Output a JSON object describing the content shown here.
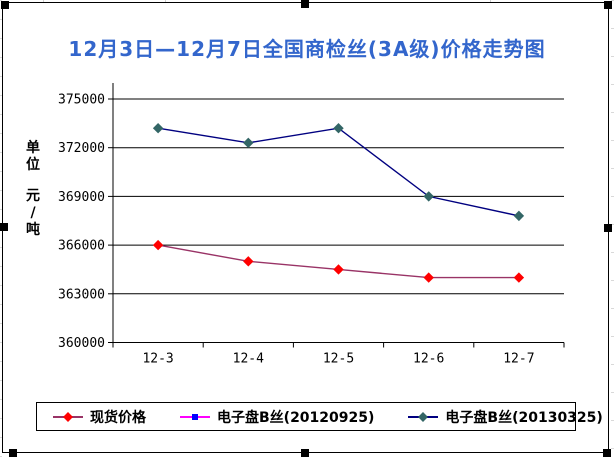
{
  "chart": {
    "title_color": "#3366CC",
    "border_color": "#000000",
    "background_color": "#FFFFFF",
    "selection_handles": true
  },
  "chart_data": {
    "type": "line",
    "title": "12月3日—12月7日全国商检丝(3A级)价格走势图",
    "categories": [
      "12-3",
      "12-4",
      "12-5",
      "12-6",
      "12-7"
    ],
    "series": [
      {
        "name": "现货价格",
        "values": [
          366000,
          365000,
          364500,
          364000,
          364000
        ],
        "line_color": "#993366",
        "marker_color": "#FF0000",
        "marker": "diamond"
      },
      {
        "name": "电子盘B丝(20120925)",
        "values": [],
        "line_color": "#FF00FF",
        "marker_color": "#0000FF",
        "marker": "square"
      },
      {
        "name": "电子盘B丝(20130325)",
        "values": [
          373200,
          372300,
          373200,
          369000,
          367800
        ],
        "line_color": "#000080",
        "marker_color": "#336666",
        "marker": "diamond"
      }
    ],
    "ylabel": "单位 元/吨",
    "ylabel_lines": [
      "单位",
      "元/吨"
    ],
    "ylim": [
      360000,
      375000
    ],
    "yticks": [
      360000,
      363000,
      366000,
      369000,
      372000,
      375000
    ],
    "grid": true,
    "legend_position": "bottom"
  }
}
